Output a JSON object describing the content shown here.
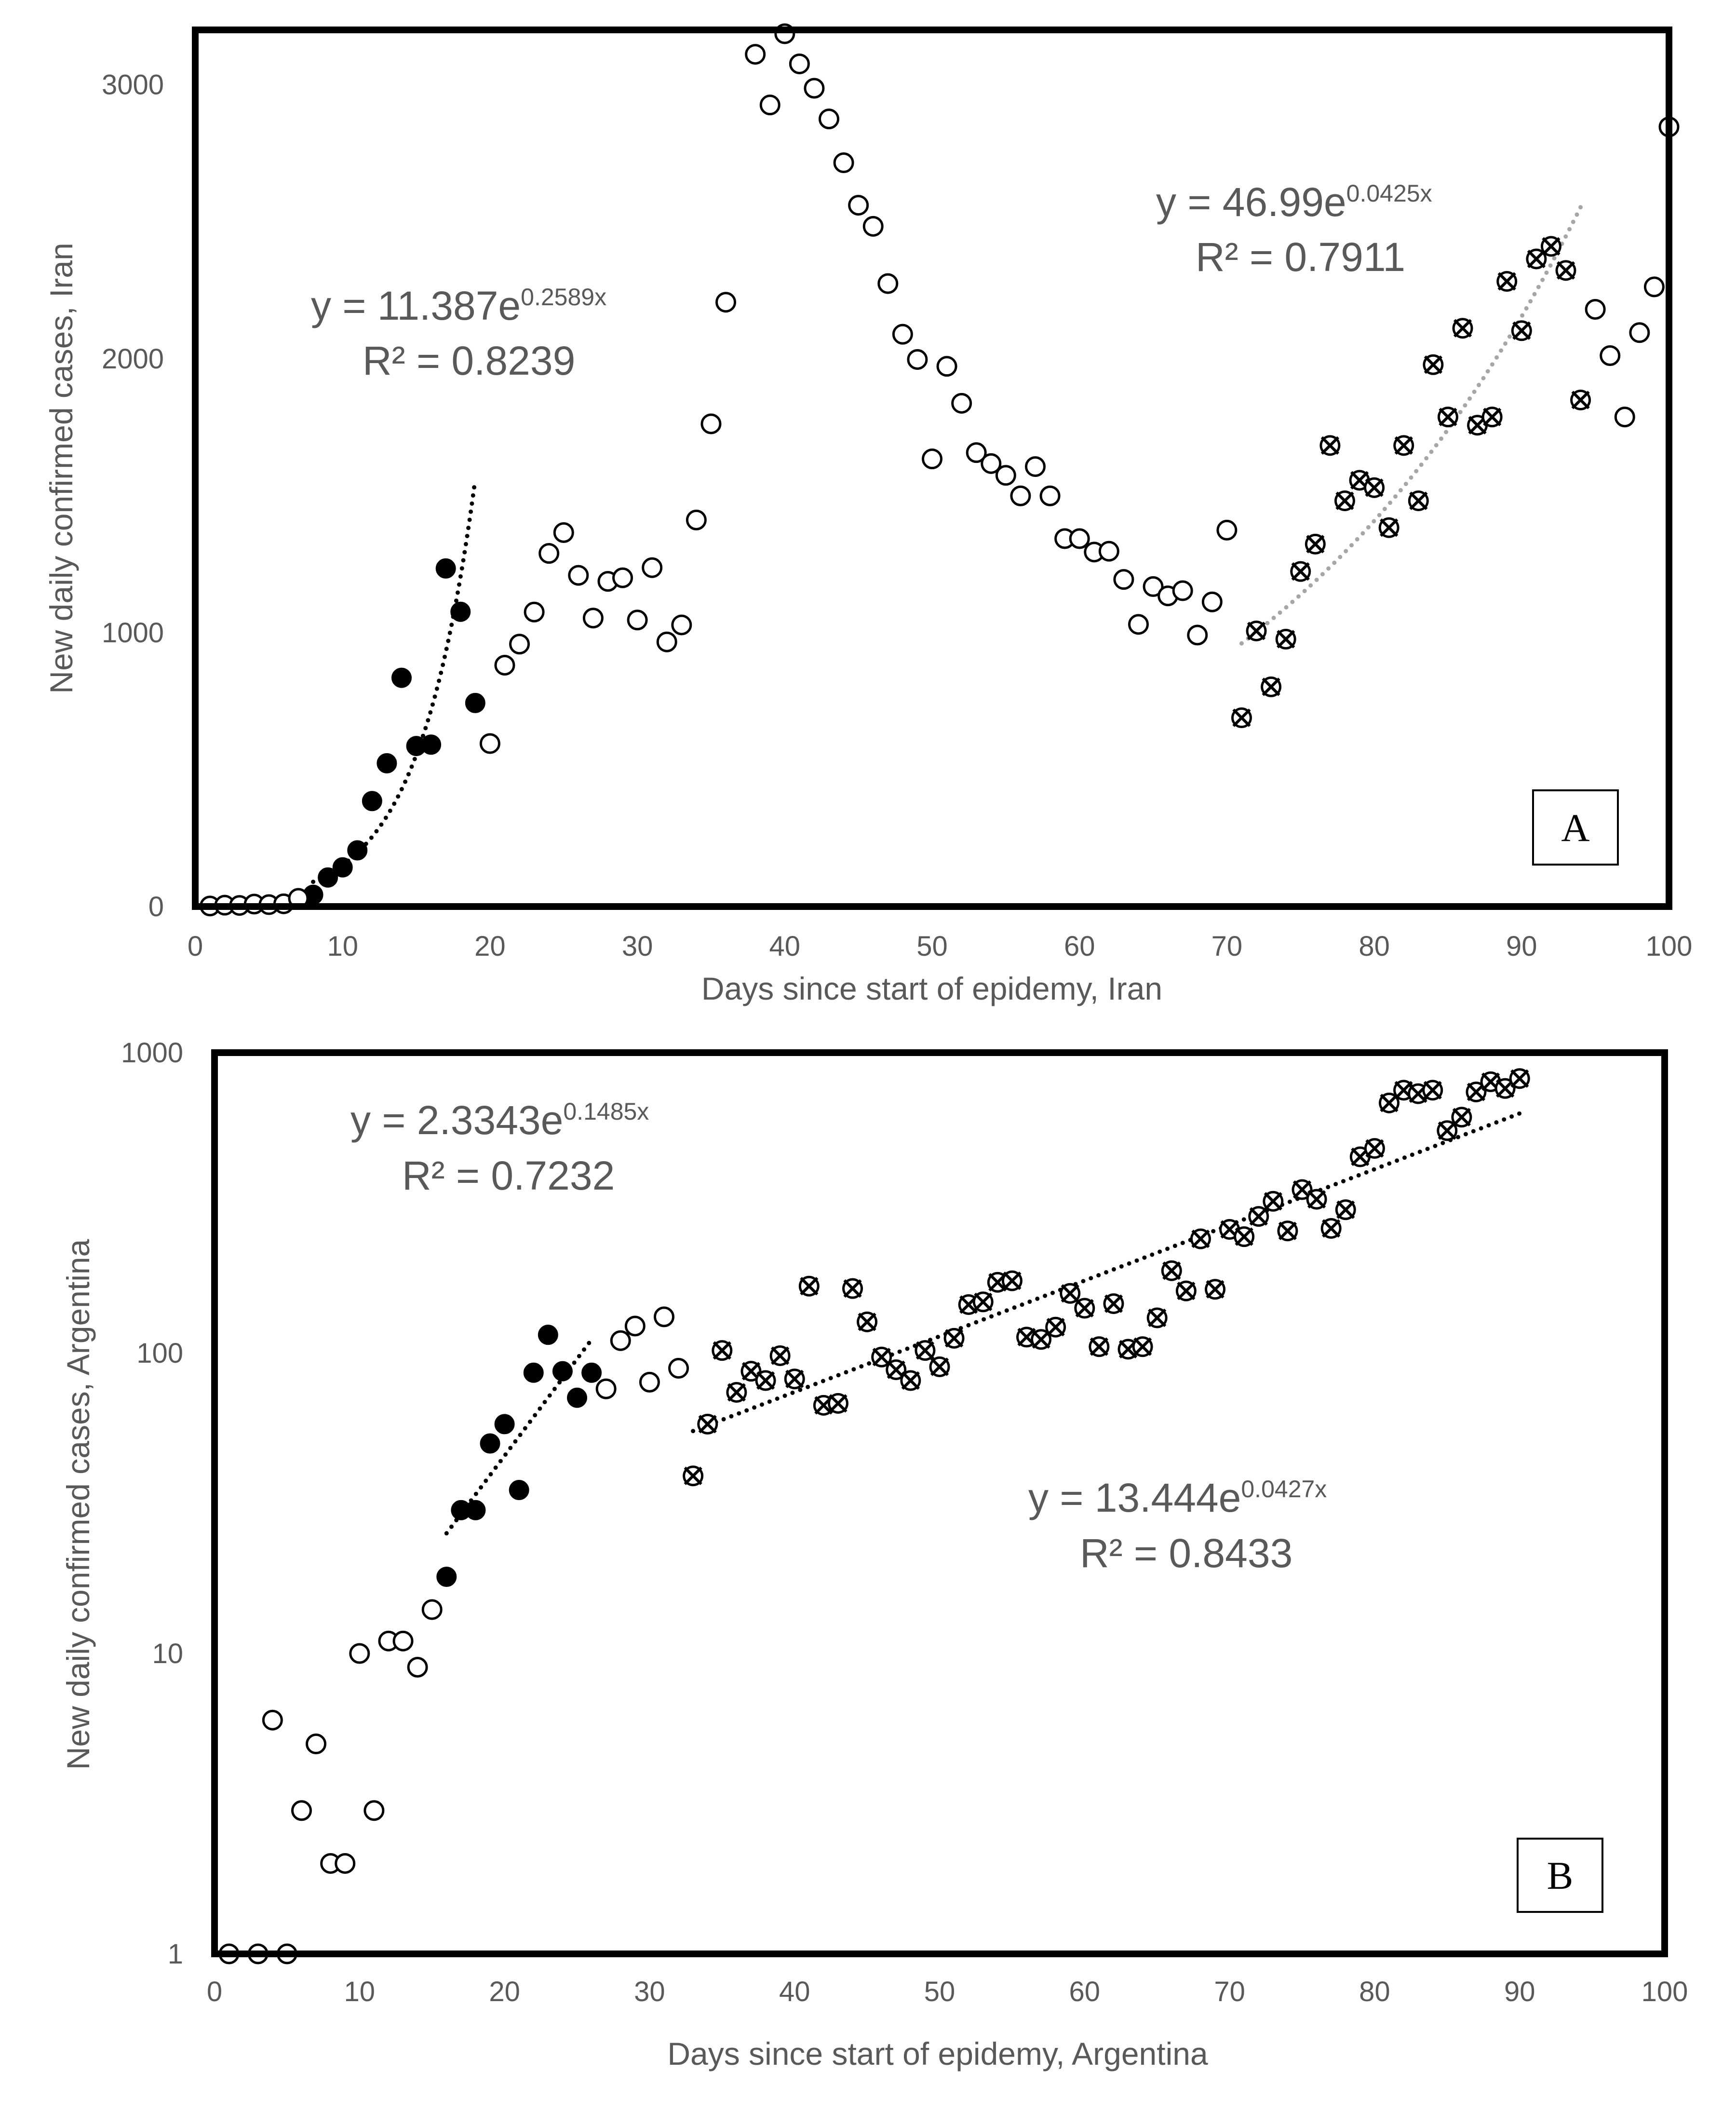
{
  "chart_data": [
    {
      "type": "scatter",
      "panel_label": "A",
      "xlabel": "Days since start of epidemy, Iran",
      "ylabel": "New daily confirmed cases, Iran",
      "xlim": [
        0,
        100
      ],
      "ylim": [
        0,
        3200
      ],
      "y_scale": "linear",
      "x_ticks": [
        "0",
        "10",
        "20",
        "30",
        "40",
        "50",
        "60",
        "70",
        "80",
        "90",
        "100"
      ],
      "y_ticks": [
        "0",
        "1000",
        "2000",
        "3000"
      ],
      "grid": false,
      "series": [
        {
          "name": "early phase (filled)",
          "marker": "filled",
          "points": [
            [
              8,
              43
            ],
            [
              9,
              106
            ],
            [
              10,
              143
            ],
            [
              11,
              205
            ],
            [
              12,
              385
            ],
            [
              13,
              523
            ],
            [
              14,
              835
            ],
            [
              15,
              586
            ],
            [
              16,
              591
            ],
            [
              17,
              1234
            ],
            [
              18,
              1076
            ],
            [
              19,
              743
            ]
          ]
        },
        {
          "name": "intermediate (open)",
          "marker": "open",
          "points": [
            [
              1,
              2
            ],
            [
              2,
              5
            ],
            [
              3,
              4
            ],
            [
              4,
              9
            ],
            [
              5,
              7
            ],
            [
              6,
              10
            ],
            [
              7,
              30
            ],
            [
              20,
              595
            ],
            [
              21,
              881
            ],
            [
              22,
              958
            ],
            [
              23,
              1075
            ],
            [
              24,
              1289
            ],
            [
              25,
              1365
            ],
            [
              26,
              1209
            ],
            [
              27,
              1053
            ],
            [
              28,
              1187
            ],
            [
              29,
              1200
            ],
            [
              30,
              1046
            ],
            [
              31,
              1237
            ],
            [
              32,
              966
            ],
            [
              33,
              1028
            ],
            [
              34,
              1411
            ],
            [
              35,
              1762
            ],
            [
              36,
              2206
            ],
            [
              38,
              3111
            ],
            [
              39,
              2926
            ],
            [
              40,
              3186
            ],
            [
              41,
              3076
            ],
            [
              42,
              2987
            ],
            [
              43,
              2875
            ],
            [
              44,
              2715
            ],
            [
              45,
              2560
            ],
            [
              46,
              2483
            ],
            [
              47,
              2274
            ],
            [
              48,
              2089
            ],
            [
              49,
              1997
            ],
            [
              50,
              1634
            ],
            [
              51,
              1972
            ],
            [
              52,
              1837
            ],
            [
              53,
              1657
            ],
            [
              54,
              1617
            ],
            [
              55,
              1574
            ],
            [
              56,
              1499
            ],
            [
              57,
              1606
            ],
            [
              58,
              1499
            ],
            [
              59,
              1343
            ],
            [
              60,
              1343
            ],
            [
              61,
              1294
            ],
            [
              62,
              1297
            ],
            [
              63,
              1194
            ],
            [
              64,
              1030
            ],
            [
              65,
              1168
            ],
            [
              66,
              1134
            ],
            [
              67,
              1153
            ],
            [
              68,
              991
            ],
            [
              69,
              1112
            ],
            [
              70,
              1374
            ],
            [
              95,
              2180
            ],
            [
              96,
              2011
            ],
            [
              97,
              1787
            ],
            [
              98,
              2095
            ],
            [
              99,
              2262
            ],
            [
              100,
              2846
            ]
          ]
        },
        {
          "name": "later phase (crossed circles)",
          "marker": "crossed",
          "points": [
            [
              71,
              689
            ],
            [
              72,
              1006
            ],
            [
              73,
              802
            ],
            [
              74,
              976
            ],
            [
              75,
              1223
            ],
            [
              76,
              1323
            ],
            [
              77,
              1683
            ],
            [
              78,
              1481
            ],
            [
              79,
              1556
            ],
            [
              80,
              1529
            ],
            [
              81,
              1383
            ],
            [
              82,
              1683
            ],
            [
              83,
              1481
            ],
            [
              84,
              1978
            ],
            [
              85,
              1787
            ],
            [
              86,
              2111
            ],
            [
              87,
              1757
            ],
            [
              88,
              1787
            ],
            [
              89,
              2282
            ],
            [
              90,
              2102
            ],
            [
              91,
              2364
            ],
            [
              92,
              2410
            ],
            [
              93,
              2322
            ],
            [
              94,
              1849
            ]
          ]
        }
      ],
      "trendlines": [
        {
          "equation_main": "y = 11.387e",
          "equation_exp": "0.2589x",
          "r2": "R² = 0.8239",
          "a": 11.387,
          "b": 0.2589,
          "x_range": [
            8,
            19
          ],
          "color": "#000000"
        },
        {
          "equation_main": "y = 46.99e",
          "equation_exp": "0.0425x",
          "r2": "R² = 0.7911",
          "a": 46.99,
          "b": 0.0425,
          "x_range": [
            71,
            94
          ],
          "color": "#a6a6a6"
        }
      ]
    },
    {
      "type": "scatter",
      "panel_label": "B",
      "xlabel": "Days since start of epidemy, Argentina",
      "ylabel": "New daily confirmed cases, Argentina",
      "xlim": [
        0,
        100
      ],
      "ylim": [
        1,
        1000
      ],
      "y_scale": "log",
      "x_ticks": [
        "0",
        "10",
        "20",
        "30",
        "40",
        "50",
        "60",
        "70",
        "80",
        "90",
        "100"
      ],
      "y_ticks": [
        "1",
        "10",
        "100",
        "1000"
      ],
      "grid": false,
      "series": [
        {
          "name": "early phase (filled)",
          "marker": "filled",
          "points": [
            [
              16,
              18
            ],
            [
              17,
              30
            ],
            [
              18,
              30
            ],
            [
              19,
              50
            ],
            [
              20,
              58
            ],
            [
              21,
              35
            ],
            [
              22,
              86
            ],
            [
              23,
              115
            ],
            [
              24,
              87
            ],
            [
              25,
              71
            ],
            [
              26,
              86
            ]
          ]
        },
        {
          "name": "intermediate (open)",
          "marker": "open",
          "points": [
            [
              1,
              1
            ],
            [
              3,
              1
            ],
            [
              4,
              6
            ],
            [
              5,
              1
            ],
            [
              6,
              3
            ],
            [
              7,
              5
            ],
            [
              8,
              2
            ],
            [
              9,
              2
            ],
            [
              10,
              10
            ],
            [
              11,
              3
            ],
            [
              12,
              11
            ],
            [
              13,
              11
            ],
            [
              14,
              9
            ],
            [
              15,
              14
            ],
            [
              27,
              76
            ],
            [
              28,
              110
            ],
            [
              29,
              123
            ],
            [
              30,
              80
            ],
            [
              31,
              132
            ],
            [
              32,
              89
            ]
          ]
        },
        {
          "name": "later phase (crossed circles)",
          "marker": "crossed",
          "points": [
            [
              33,
              39
            ],
            [
              34,
              58
            ],
            [
              35,
              102
            ],
            [
              36,
              74
            ],
            [
              37,
              87
            ],
            [
              38,
              81
            ],
            [
              39,
              98
            ],
            [
              40,
              82
            ],
            [
              41,
              167
            ],
            [
              42,
              67
            ],
            [
              43,
              68
            ],
            [
              44,
              164
            ],
            [
              45,
              127
            ],
            [
              46,
              97
            ],
            [
              47,
              88
            ],
            [
              48,
              81
            ],
            [
              49,
              102
            ],
            [
              50,
              90
            ],
            [
              51,
              112
            ],
            [
              52,
              145
            ],
            [
              53,
              148
            ],
            [
              54,
              172
            ],
            [
              55,
              174
            ],
            [
              56,
              113
            ],
            [
              57,
              111
            ],
            [
              58,
              122
            ],
            [
              59,
              158
            ],
            [
              60,
              141
            ],
            [
              61,
              105
            ],
            [
              62,
              146
            ],
            [
              63,
              103
            ],
            [
              64,
              105
            ],
            [
              65,
              131
            ],
            [
              66,
              188
            ],
            [
              67,
              161
            ],
            [
              68,
              240
            ],
            [
              69,
              163
            ],
            [
              70,
              258
            ],
            [
              71,
              244
            ],
            [
              72,
              285
            ],
            [
              73,
              320
            ],
            [
              74,
              255
            ],
            [
              75,
              350
            ],
            [
              76,
              325
            ],
            [
              77,
              260
            ],
            [
              78,
              300
            ],
            [
              79,
              450
            ],
            [
              80,
              480
            ],
            [
              81,
              680
            ],
            [
              82,
              750
            ],
            [
              83,
              730
            ],
            [
              84,
              750
            ],
            [
              85,
              550
            ],
            [
              86,
              610
            ],
            [
              87,
              740
            ],
            [
              88,
              800
            ],
            [
              89,
              760
            ],
            [
              90,
              820
            ]
          ]
        }
      ],
      "trendlines": [
        {
          "equation_main": "y = 2.3343e",
          "equation_exp": "0.1485x",
          "r2": "R² = 0.7232",
          "a": 2.3343,
          "b": 0.1485,
          "x_range": [
            16,
            26
          ],
          "color": "#000000"
        },
        {
          "equation_main": "y = 13.444e",
          "equation_exp": "0.0427x",
          "r2": "R² = 0.8433",
          "a": 13.444,
          "b": 0.0427,
          "x_range": [
            33,
            90
          ],
          "color": "#000000"
        }
      ]
    }
  ]
}
